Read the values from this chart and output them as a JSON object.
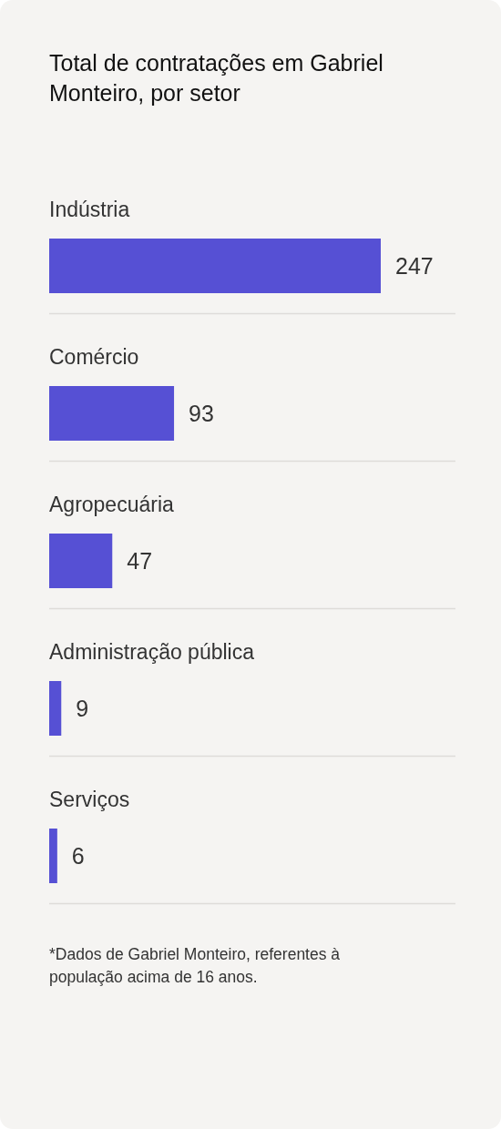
{
  "chart_data": {
    "type": "bar",
    "orientation": "horizontal",
    "title": "Total de contratações em Gabriel Monteiro, por setor",
    "categories": [
      "Indústria",
      "Comércio",
      "Agropecuária",
      "Administração pública",
      "Serviços"
    ],
    "values": [
      247,
      93,
      47,
      9,
      6
    ],
    "color": "#5650d4",
    "data_labels": true,
    "annotations": [
      "*Dados de Gabriel Monteiro, referentes à população acima de 16 anos."
    ]
  }
}
